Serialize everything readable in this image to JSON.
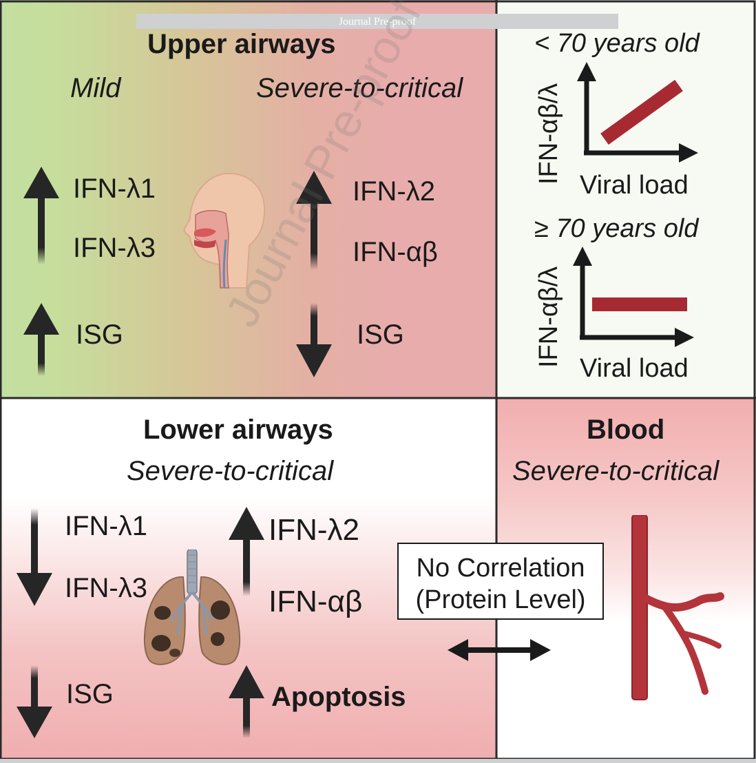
{
  "watermark": {
    "bar_text": "Journal Pre-proof",
    "diagonal_text": "Journal Pre-proof"
  },
  "upper": {
    "title": "Upper airways",
    "mild": {
      "label": "Mild",
      "ifn_up_1": "IFN-λ1",
      "ifn_up_2": "IFN-λ3",
      "isg": "ISG",
      "ifn_direction": "up",
      "isg_direction": "up"
    },
    "severe": {
      "label": "Severe-to-critical",
      "ifn_up_1": "IFN-λ2",
      "ifn_up_2": "IFN-αβ",
      "isg": "ISG",
      "ifn_direction": "up",
      "isg_direction": "down"
    },
    "icon": "head-airway-icon"
  },
  "age_panels": {
    "young": {
      "title": "< 70 years old",
      "ylabel": "IFN-αβ/λ",
      "xlabel": "Viral load",
      "trend": "increasing"
    },
    "old": {
      "title": "≥ 70 years old",
      "ylabel": "IFN-αβ/λ",
      "xlabel": "Viral load",
      "trend": "flat"
    },
    "line_color": "#a72a33"
  },
  "lower": {
    "title": "Lower airways",
    "subtitle": "Severe-to-critical",
    "down_1": "IFN-λ1",
    "down_2": "IFN-λ3",
    "up_1": "IFN-λ2",
    "up_2": "IFN-αβ",
    "isg": "ISG",
    "apoptosis": "Apoptosis",
    "icon": "lungs-icon"
  },
  "connector": {
    "line1": "No Correlation",
    "line2": "(Protein Level)",
    "icon": "double-arrow-icon"
  },
  "blood": {
    "title": "Blood",
    "subtitle": "Severe-to-critical",
    "icon": "blood-vessel-icon"
  },
  "colors": {
    "mild_green": "#c3dfa0",
    "severe_pink": "#e8acac",
    "trend_red": "#a72a33",
    "vessel_red": "#b3343a",
    "arrow_dark": "#262626"
  }
}
